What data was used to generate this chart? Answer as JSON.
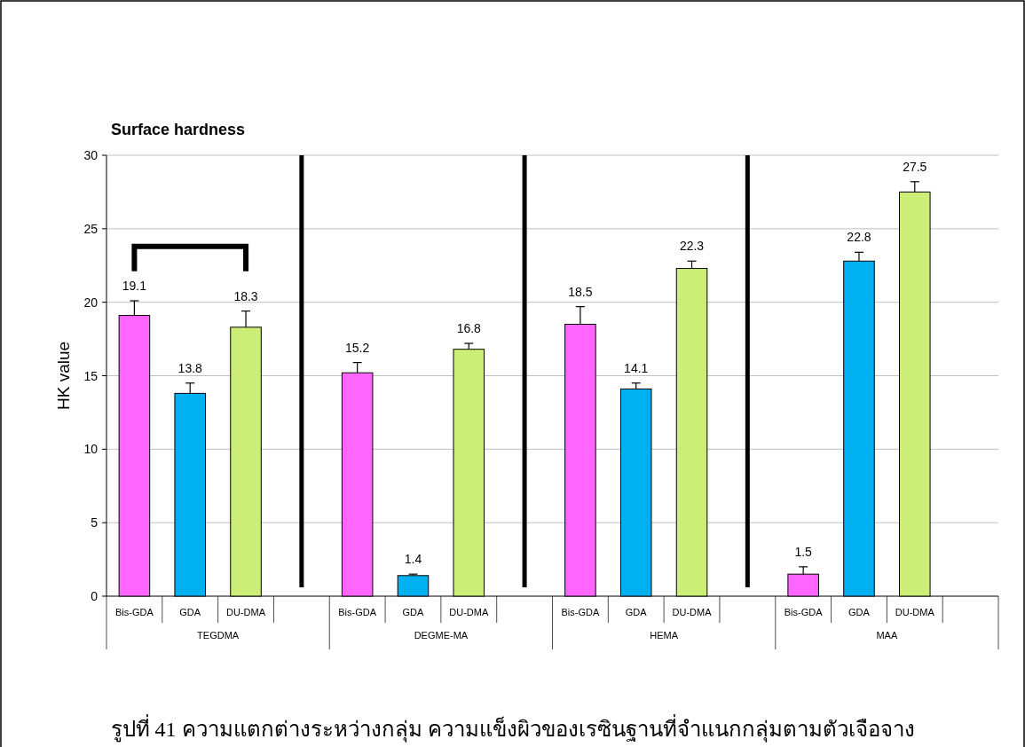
{
  "chart_data": {
    "type": "bar",
    "title": "Surface hardness",
    "ylabel": "HK value",
    "categories": [
      "TEGDMA",
      "DEGME-MA",
      "HEMA",
      "MAA"
    ],
    "series": [
      {
        "name": "Bis-GDA",
        "color": "#ff66ff",
        "values": [
          19.1,
          15.2,
          18.5,
          1.5
        ],
        "errors": [
          [
            19.1,
            20.1
          ],
          [
            15.2,
            15.9
          ],
          [
            18.5,
            19.7
          ],
          [
            1.5,
            2.0
          ]
        ]
      },
      {
        "name": "GDA",
        "color": "#00b0f0",
        "values": [
          13.8,
          1.4,
          14.1,
          22.8
        ],
        "errors": [
          [
            13.8,
            14.5
          ],
          [
            1.4,
            1.5
          ],
          [
            14.1,
            14.5
          ],
          [
            22.8,
            23.4
          ]
        ]
      },
      {
        "name": "DU-DMA",
        "color": "#ccee77",
        "values": [
          18.3,
          16.8,
          22.3,
          27.5
        ],
        "errors": [
          [
            18.3,
            19.4
          ],
          [
            16.8,
            17.2
          ],
          [
            22.3,
            22.8
          ],
          [
            27.5,
            28.2
          ]
        ]
      }
    ],
    "ylim": [
      0,
      30
    ],
    "yticks": [
      0,
      5,
      10,
      15,
      20,
      25,
      30
    ],
    "grid": "y",
    "data_labels": true,
    "annotations": [
      "รูปที่ 41 ความแตกต่างระหว่างกลุ่ม ความแข็งผิวของเรซินฐานที่จำแนกกลุ่มตามตัวเจือจาง"
    ]
  }
}
